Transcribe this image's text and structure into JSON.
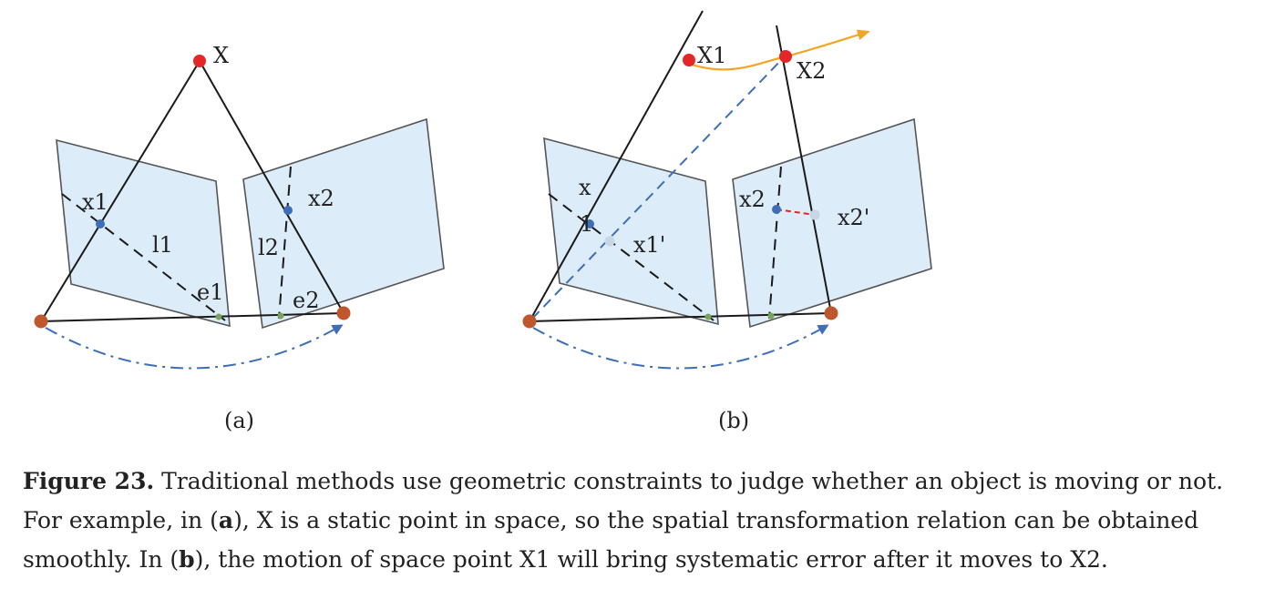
{
  "panel_a": {
    "labels": {
      "X": "X",
      "x1": "x1",
      "x2": "x2",
      "l1": "l1",
      "l2": "l2",
      "e1": "e1",
      "e2": "e2"
    },
    "sublabel": "(a)"
  },
  "panel_b": {
    "labels": {
      "X1": "X1",
      "X2": "X2",
      "x": "x",
      "one": "1",
      "x1p": "x1'",
      "x2": "x2",
      "x2p": "x2'"
    },
    "sublabel": "(b)"
  },
  "caption": {
    "figure_label": "Figure 23.",
    "text1": " Traditional methods use geometric constraints to judge whether an object is moving or not. For example, in (",
    "ref_a": "a",
    "text2": "), X is a static point in space, so the spatial transformation relation can be obtained smoothly. In (",
    "ref_b": "b",
    "text3": "), the motion of space point X1 will bring systematic error after it moves to X2."
  },
  "colors": {
    "plane_fill": "#dcecf9",
    "world_point": "#e32626",
    "camera_center": "#c0562c",
    "image_point": "#3d6eb7",
    "reprojected_point": "#c9d6e6",
    "epipole": "#79a35a",
    "motion_arrow": "#f2a526",
    "error_line": "#e32626"
  }
}
